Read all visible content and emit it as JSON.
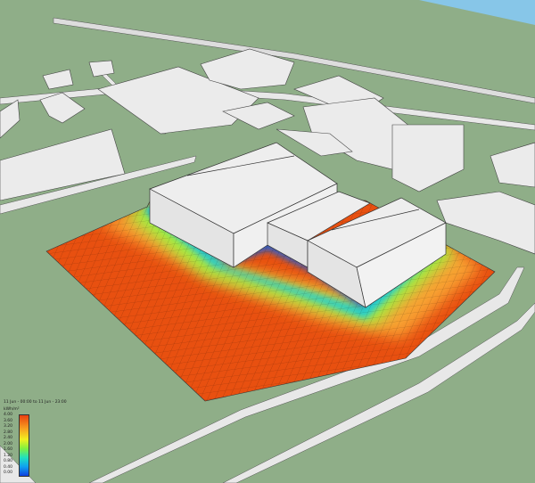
{
  "legend": {
    "title": "11 Jun - 00:00 to 11 Jun - 23:00",
    "unit": "kWh/m²",
    "ticks": [
      "4.00",
      "3.60",
      "3.20",
      "2.80",
      "2.40",
      "2.00",
      "1.60",
      "1.20",
      "0.80",
      "0.40",
      "0.00"
    ],
    "colormap": [
      "#1040e0",
      "#10a0f0",
      "#20e0c0",
      "#80f040",
      "#f0f020",
      "#f8a020",
      "#e84010"
    ]
  },
  "colors": {
    "ground": "#8fae88",
    "sky": "#87c6e8",
    "building": "#ebebeb",
    "road": "#e6e6e6",
    "heat_max": "#e85010",
    "heat_min": "#1060e0"
  }
}
